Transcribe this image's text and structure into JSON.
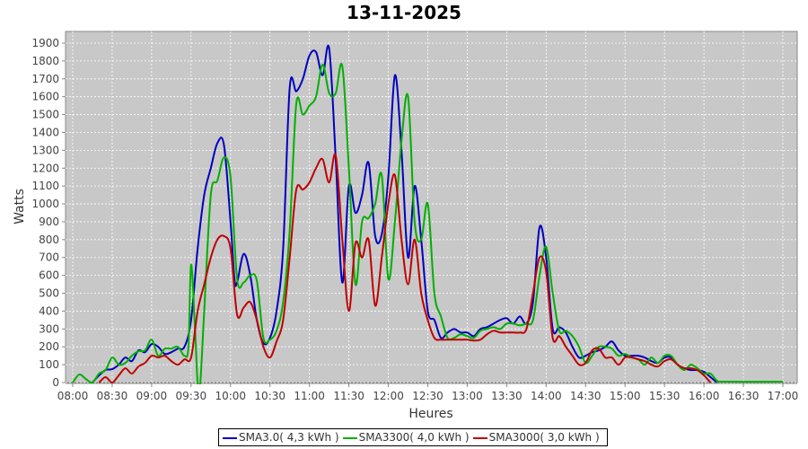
{
  "chart_data": {
    "type": "line",
    "title": "13-11-2025",
    "xlabel": "Heures",
    "ylabel": "Watts",
    "xlim": [
      "07:55",
      "17:10"
    ],
    "ylim": [
      0,
      1960
    ],
    "grid": true,
    "legend_placement": "bottom",
    "xticks": [
      "08:00",
      "08:30",
      "09:00",
      "09:30",
      "10:00",
      "10:30",
      "11:00",
      "11:30",
      "12:00",
      "12:30",
      "13:00",
      "13:30",
      "14:00",
      "14:30",
      "15:00",
      "15:30",
      "16:00",
      "16:30",
      "17:00"
    ],
    "yticks": [
      0,
      100,
      200,
      300,
      400,
      500,
      600,
      700,
      800,
      900,
      1000,
      1100,
      1200,
      1300,
      1400,
      1500,
      1600,
      1700,
      1800,
      1900
    ],
    "background": "#c8c8c8",
    "series": [
      {
        "name": "SMA3.0( 4,3 kWh )",
        "color": "#0000c0",
        "points": [
          [
            "08:15",
            0
          ],
          [
            "08:20",
            40
          ],
          [
            "08:25",
            70
          ],
          [
            "08:30",
            75
          ],
          [
            "08:35",
            100
          ],
          [
            "08:40",
            140
          ],
          [
            "08:45",
            120
          ],
          [
            "08:50",
            180
          ],
          [
            "08:55",
            170
          ],
          [
            "09:00",
            215
          ],
          [
            "09:05",
            200
          ],
          [
            "09:10",
            160
          ],
          [
            "09:15",
            170
          ],
          [
            "09:20",
            190
          ],
          [
            "09:25",
            200
          ],
          [
            "09:30",
            350
          ],
          [
            "09:35",
            750
          ],
          [
            "09:40",
            1050
          ],
          [
            "09:45",
            1200
          ],
          [
            "09:50",
            1340
          ],
          [
            "09:55",
            1330
          ],
          [
            "10:00",
            900
          ],
          [
            "10:03",
            580
          ],
          [
            "10:05",
            560
          ],
          [
            "10:10",
            720
          ],
          [
            "10:15",
            600
          ],
          [
            "10:20",
            350
          ],
          [
            "10:25",
            220
          ],
          [
            "10:30",
            250
          ],
          [
            "10:35",
            400
          ],
          [
            "10:40",
            750
          ],
          [
            "10:45",
            1650
          ],
          [
            "10:50",
            1630
          ],
          [
            "10:55",
            1700
          ],
          [
            "11:00",
            1830
          ],
          [
            "11:05",
            1850
          ],
          [
            "11:10",
            1720
          ],
          [
            "11:15",
            1870
          ],
          [
            "11:20",
            1250
          ],
          [
            "11:25",
            560
          ],
          [
            "11:30",
            1100
          ],
          [
            "11:35",
            950
          ],
          [
            "11:40",
            1050
          ],
          [
            "11:45",
            1230
          ],
          [
            "11:50",
            820
          ],
          [
            "11:55",
            830
          ],
          [
            "12:00",
            1150
          ],
          [
            "12:05",
            1720
          ],
          [
            "12:10",
            1300
          ],
          [
            "12:15",
            700
          ],
          [
            "12:20",
            1100
          ],
          [
            "12:25",
            800
          ],
          [
            "12:30",
            400
          ],
          [
            "12:35",
            350
          ],
          [
            "12:40",
            250
          ],
          [
            "12:45",
            280
          ],
          [
            "12:50",
            300
          ],
          [
            "12:55",
            280
          ],
          [
            "13:00",
            280
          ],
          [
            "13:05",
            260
          ],
          [
            "13:10",
            300
          ],
          [
            "13:15",
            310
          ],
          [
            "13:20",
            330
          ],
          [
            "13:25",
            350
          ],
          [
            "13:30",
            360
          ],
          [
            "13:35",
            330
          ],
          [
            "13:40",
            370
          ],
          [
            "13:45",
            330
          ],
          [
            "13:50",
            450
          ],
          [
            "13:55",
            870
          ],
          [
            "14:00",
            700
          ],
          [
            "14:05",
            300
          ],
          [
            "14:10",
            310
          ],
          [
            "14:15",
            280
          ],
          [
            "14:20",
            200
          ],
          [
            "14:25",
            140
          ],
          [
            "14:30",
            150
          ],
          [
            "14:35",
            170
          ],
          [
            "14:40",
            180
          ],
          [
            "14:45",
            200
          ],
          [
            "14:50",
            230
          ],
          [
            "14:55",
            180
          ],
          [
            "15:00",
            150
          ],
          [
            "15:05",
            150
          ],
          [
            "15:10",
            150
          ],
          [
            "15:15",
            140
          ],
          [
            "15:20",
            120
          ],
          [
            "15:25",
            110
          ],
          [
            "15:30",
            140
          ],
          [
            "15:35",
            140
          ],
          [
            "15:40",
            100
          ],
          [
            "15:45",
            80
          ],
          [
            "15:50",
            70
          ],
          [
            "15:55",
            70
          ],
          [
            "16:00",
            60
          ],
          [
            "16:05",
            30
          ],
          [
            "16:10",
            0
          ]
        ]
      },
      {
        "name": "SMA3300( 4,0 kWh )",
        "color": "#00b000",
        "points": [
          [
            "08:00",
            0
          ],
          [
            "08:05",
            45
          ],
          [
            "08:10",
            20
          ],
          [
            "08:15",
            0
          ],
          [
            "08:20",
            50
          ],
          [
            "08:25",
            70
          ],
          [
            "08:30",
            140
          ],
          [
            "08:35",
            100
          ],
          [
            "08:40",
            110
          ],
          [
            "08:45",
            150
          ],
          [
            "08:50",
            175
          ],
          [
            "08:55",
            180
          ],
          [
            "09:00",
            240
          ],
          [
            "09:05",
            150
          ],
          [
            "09:10",
            190
          ],
          [
            "09:15",
            190
          ],
          [
            "09:20",
            200
          ],
          [
            "09:25",
            150
          ],
          [
            "09:28",
            200
          ],
          [
            "09:30",
            660
          ],
          [
            "09:33",
            300
          ],
          [
            "09:35",
            0
          ],
          [
            "09:37",
            0
          ],
          [
            "09:40",
            400
          ],
          [
            "09:45",
            1050
          ],
          [
            "09:50",
            1130
          ],
          [
            "09:55",
            1260
          ],
          [
            "10:00",
            1150
          ],
          [
            "10:05",
            580
          ],
          [
            "10:10",
            560
          ],
          [
            "10:15",
            600
          ],
          [
            "10:20",
            570
          ],
          [
            "10:25",
            250
          ],
          [
            "10:30",
            240
          ],
          [
            "10:35",
            290
          ],
          [
            "10:40",
            450
          ],
          [
            "10:45",
            850
          ],
          [
            "10:50",
            1560
          ],
          [
            "10:55",
            1500
          ],
          [
            "11:00",
            1550
          ],
          [
            "11:05",
            1600
          ],
          [
            "11:10",
            1780
          ],
          [
            "11:15",
            1620
          ],
          [
            "11:20",
            1620
          ],
          [
            "11:25",
            1770
          ],
          [
            "11:30",
            1200
          ],
          [
            "11:35",
            550
          ],
          [
            "11:40",
            900
          ],
          [
            "11:45",
            920
          ],
          [
            "11:50",
            1000
          ],
          [
            "11:55",
            1160
          ],
          [
            "12:00",
            580
          ],
          [
            "12:05",
            900
          ],
          [
            "12:10",
            1350
          ],
          [
            "12:15",
            1600
          ],
          [
            "12:20",
            900
          ],
          [
            "12:25",
            800
          ],
          [
            "12:30",
            1000
          ],
          [
            "12:35",
            500
          ],
          [
            "12:40",
            370
          ],
          [
            "12:45",
            250
          ],
          [
            "12:50",
            250
          ],
          [
            "12:55",
            270
          ],
          [
            "13:00",
            260
          ],
          [
            "13:05",
            250
          ],
          [
            "13:10",
            290
          ],
          [
            "13:15",
            300
          ],
          [
            "13:20",
            310
          ],
          [
            "13:25",
            300
          ],
          [
            "13:30",
            330
          ],
          [
            "13:35",
            330
          ],
          [
            "13:40",
            320
          ],
          [
            "13:45",
            330
          ],
          [
            "13:50",
            350
          ],
          [
            "13:55",
            600
          ],
          [
            "14:00",
            760
          ],
          [
            "14:05",
            500
          ],
          [
            "14:10",
            290
          ],
          [
            "14:15",
            290
          ],
          [
            "14:20",
            260
          ],
          [
            "14:25",
            200
          ],
          [
            "14:30",
            110
          ],
          [
            "14:35",
            150
          ],
          [
            "14:40",
            200
          ],
          [
            "14:45",
            200
          ],
          [
            "14:50",
            190
          ],
          [
            "14:55",
            150
          ],
          [
            "15:00",
            160
          ],
          [
            "15:05",
            140
          ],
          [
            "15:10",
            130
          ],
          [
            "15:15",
            100
          ],
          [
            "15:20",
            140
          ],
          [
            "15:25",
            110
          ],
          [
            "15:30",
            150
          ],
          [
            "15:35",
            150
          ],
          [
            "15:40",
            100
          ],
          [
            "15:45",
            70
          ],
          [
            "15:50",
            100
          ],
          [
            "15:55",
            80
          ],
          [
            "16:00",
            50
          ],
          [
            "16:05",
            50
          ],
          [
            "16:10",
            10
          ],
          [
            "16:15",
            5
          ],
          [
            "17:00",
            5
          ]
        ]
      },
      {
        "name": "SMA3000( 3,0 kWh )",
        "color": "#c00000",
        "points": [
          [
            "08:20",
            0
          ],
          [
            "08:25",
            30
          ],
          [
            "08:30",
            0
          ],
          [
            "08:35",
            40
          ],
          [
            "08:40",
            80
          ],
          [
            "08:45",
            50
          ],
          [
            "08:50",
            90
          ],
          [
            "08:55",
            110
          ],
          [
            "09:00",
            150
          ],
          [
            "09:05",
            140
          ],
          [
            "09:10",
            150
          ],
          [
            "09:15",
            120
          ],
          [
            "09:20",
            100
          ],
          [
            "09:25",
            130
          ],
          [
            "09:30",
            140
          ],
          [
            "09:35",
            400
          ],
          [
            "09:40",
            550
          ],
          [
            "09:45",
            700
          ],
          [
            "09:50",
            800
          ],
          [
            "09:55",
            820
          ],
          [
            "10:00",
            750
          ],
          [
            "10:05",
            380
          ],
          [
            "10:10",
            420
          ],
          [
            "10:15",
            450
          ],
          [
            "10:20",
            350
          ],
          [
            "10:25",
            200
          ],
          [
            "10:30",
            140
          ],
          [
            "10:35",
            230
          ],
          [
            "10:40",
            350
          ],
          [
            "10:45",
            700
          ],
          [
            "10:50",
            1080
          ],
          [
            "10:55",
            1080
          ],
          [
            "11:00",
            1120
          ],
          [
            "11:05",
            1200
          ],
          [
            "11:10",
            1250
          ],
          [
            "11:15",
            1120
          ],
          [
            "11:20",
            1270
          ],
          [
            "11:25",
            800
          ],
          [
            "11:30",
            400
          ],
          [
            "11:35",
            780
          ],
          [
            "11:40",
            700
          ],
          [
            "11:45",
            800
          ],
          [
            "11:50",
            430
          ],
          [
            "11:55",
            700
          ],
          [
            "12:00",
            1000
          ],
          [
            "12:05",
            1160
          ],
          [
            "12:10",
            800
          ],
          [
            "12:15",
            550
          ],
          [
            "12:20",
            800
          ],
          [
            "12:25",
            500
          ],
          [
            "12:30",
            350
          ],
          [
            "12:35",
            250
          ],
          [
            "12:40",
            240
          ],
          [
            "12:45",
            240
          ],
          [
            "12:50",
            240
          ],
          [
            "12:55",
            240
          ],
          [
            "13:00",
            240
          ],
          [
            "13:05",
            235
          ],
          [
            "13:10",
            240
          ],
          [
            "13:15",
            270
          ],
          [
            "13:20",
            290
          ],
          [
            "13:25",
            280
          ],
          [
            "13:30",
            280
          ],
          [
            "13:35",
            280
          ],
          [
            "13:40",
            280
          ],
          [
            "13:45",
            300
          ],
          [
            "13:50",
            500
          ],
          [
            "13:55",
            700
          ],
          [
            "14:00",
            620
          ],
          [
            "14:05",
            250
          ],
          [
            "14:10",
            260
          ],
          [
            "14:15",
            200
          ],
          [
            "14:20",
            150
          ],
          [
            "14:25",
            100
          ],
          [
            "14:30",
            110
          ],
          [
            "14:35",
            180
          ],
          [
            "14:40",
            190
          ],
          [
            "14:45",
            140
          ],
          [
            "14:50",
            140
          ],
          [
            "14:55",
            100
          ],
          [
            "15:00",
            140
          ],
          [
            "15:05",
            140
          ],
          [
            "15:10",
            130
          ],
          [
            "15:15",
            120
          ],
          [
            "15:20",
            100
          ],
          [
            "15:25",
            90
          ],
          [
            "15:30",
            120
          ],
          [
            "15:35",
            130
          ],
          [
            "15:40",
            100
          ],
          [
            "15:45",
            80
          ],
          [
            "15:50",
            80
          ],
          [
            "15:55",
            70
          ],
          [
            "16:00",
            40
          ],
          [
            "16:05",
            0
          ]
        ]
      }
    ]
  }
}
